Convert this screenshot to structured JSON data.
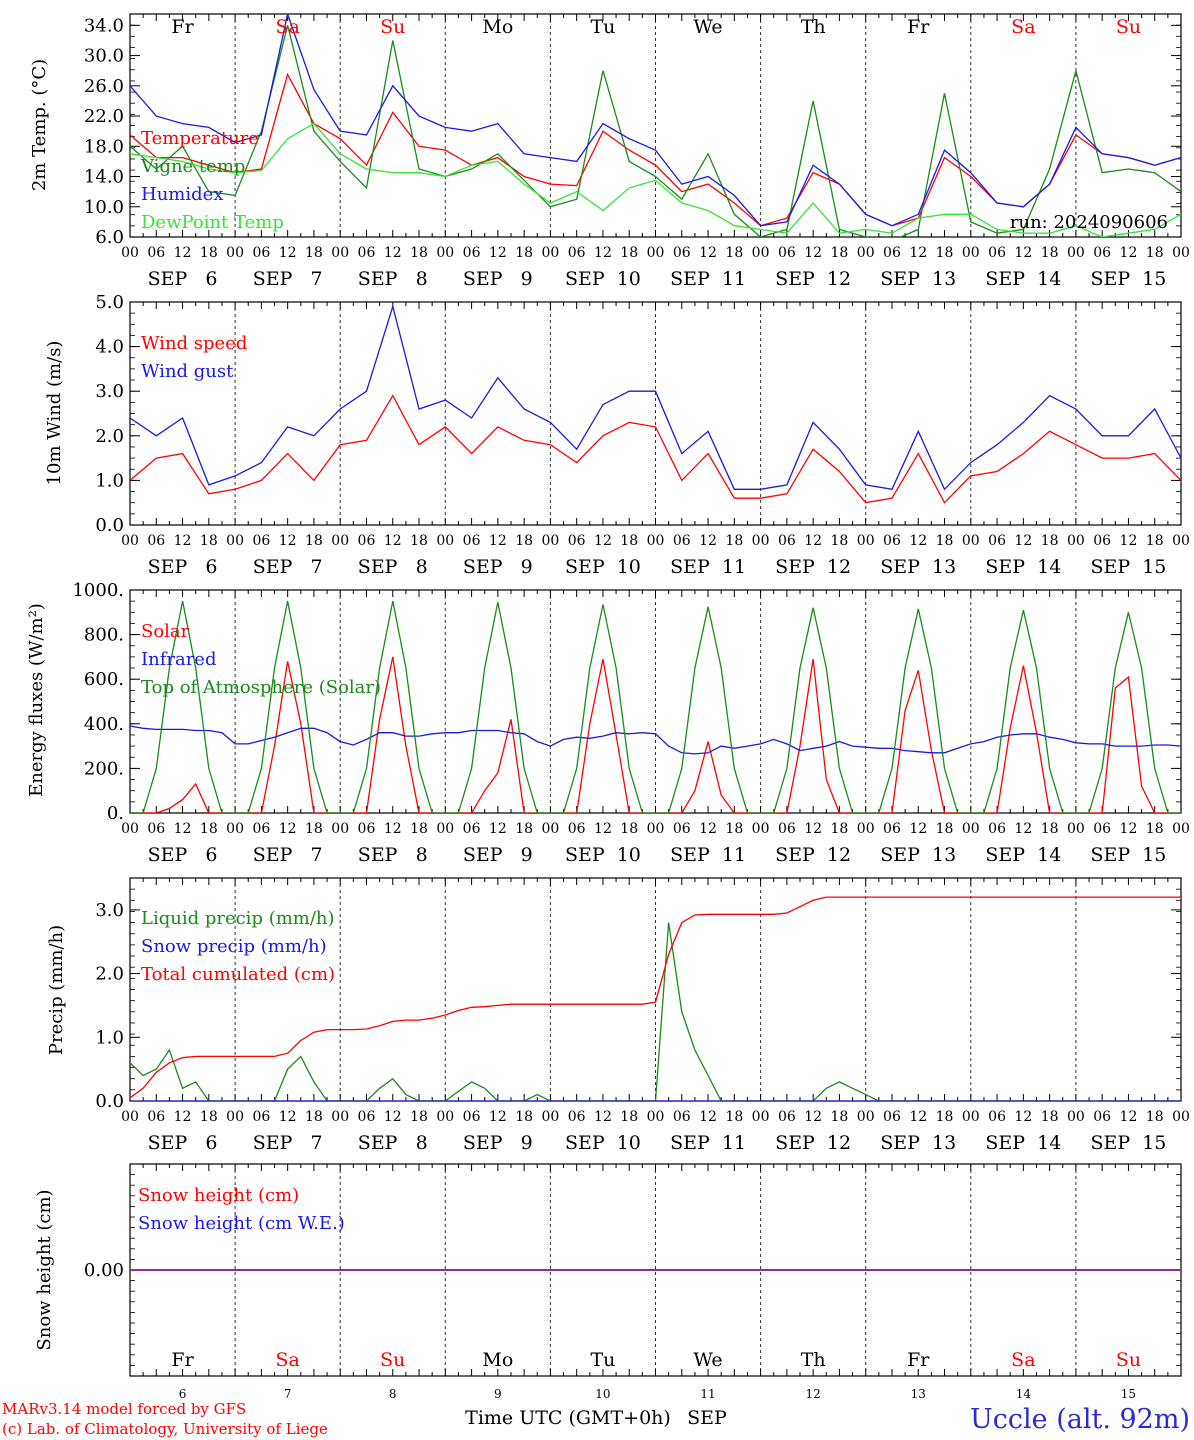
{
  "colors": {
    "red": "#ff0000",
    "green": "#1b8a1b",
    "blue": "#1a1ae6",
    "lightgreen": "#33e633",
    "weekend": "#ff0000",
    "weekday": "#000000",
    "station": "#2a2ad8"
  },
  "days": [
    {
      "abbr": "Fr",
      "date": "SEP   6",
      "num": "6",
      "weekend": false
    },
    {
      "abbr": "Sa",
      "date": "SEP   7",
      "num": "7",
      "weekend": true
    },
    {
      "abbr": "Su",
      "date": "SEP   8",
      "num": "8",
      "weekend": true
    },
    {
      "abbr": "Mo",
      "date": "SEP   9",
      "num": "9",
      "weekend": false
    },
    {
      "abbr": "Tu",
      "date": "SEP  10",
      "num": "10",
      "weekend": false
    },
    {
      "abbr": "We",
      "date": "SEP  11",
      "num": "11",
      "weekend": false
    },
    {
      "abbr": "Th",
      "date": "SEP  12",
      "num": "12",
      "weekend": false
    },
    {
      "abbr": "Fr",
      "date": "SEP  13",
      "num": "13",
      "weekend": false
    },
    {
      "abbr": "Sa",
      "date": "SEP  14",
      "num": "14",
      "weekend": true
    },
    {
      "abbr": "Su",
      "date": "SEP  15",
      "num": "15",
      "weekend": true
    }
  ],
  "hour_labels": [
    "00",
    "06",
    "12",
    "18"
  ],
  "final_hour_label": "00",
  "footer": {
    "model": "MARv3.14 model forced by GFS",
    "credit": "(c) Lab. of Climatology, University of Liege",
    "xlabel": "Time UTC (GMT+0h)",
    "month": "SEP",
    "station": "Uccle (alt. 92m)"
  },
  "chart_data": [
    {
      "type": "line",
      "ylabel": "2m Temp. (°C)",
      "ylim": [
        6.0,
        35.5
      ],
      "yticks": [
        "34.0",
        "30.0",
        "26.0",
        "22.0",
        "18.0",
        "14.0",
        "10.0",
        "6.0"
      ],
      "run_label": "run: 2024090606",
      "x_hours": [
        0,
        6,
        12,
        18,
        24,
        30,
        36,
        42,
        48,
        54,
        60,
        66,
        72,
        78,
        84,
        90,
        96,
        102,
        108,
        114,
        120,
        126,
        132,
        138,
        144,
        150,
        156,
        162,
        168,
        174,
        180,
        186,
        192,
        198,
        204,
        210,
        216,
        222,
        228,
        234,
        240
      ],
      "series": [
        {
          "name": "Temperature",
          "color": "red",
          "values": [
            19.5,
            16.5,
            16.5,
            15.5,
            14.5,
            15.0,
            27.5,
            21.0,
            19.0,
            15.5,
            22.5,
            18.0,
            17.5,
            15.5,
            16.5,
            14.0,
            13.0,
            12.8,
            20.0,
            17.5,
            15.5,
            12.0,
            13.0,
            10.5,
            7.5,
            8.5,
            14.5,
            13.0,
            9.0,
            7.5,
            8.5,
            16.5,
            14.0,
            10.5,
            10.0,
            13.0,
            19.5,
            17.0,
            16.5,
            15.5,
            16.5
          ]
        },
        {
          "name": "Vigne temp",
          "color": "green",
          "values": [
            18.0,
            15.0,
            18.0,
            12.0,
            11.5,
            20.0,
            34.0,
            20.0,
            16.0,
            12.5,
            32.0,
            15.0,
            14.0,
            15.0,
            17.0,
            13.5,
            10.0,
            11.0,
            28.0,
            16.0,
            14.0,
            11.0,
            17.0,
            9.0,
            6.0,
            7.0,
            24.0,
            7.0,
            6.0,
            5.5,
            7.0,
            25.0,
            8.0,
            6.5,
            7.0,
            15.0,
            28.0,
            14.5,
            15.0,
            14.5,
            12.0
          ]
        },
        {
          "name": "Humidex",
          "color": "blue",
          "values": [
            26.0,
            22.0,
            21.0,
            20.5,
            18.5,
            19.5,
            35.5,
            25.5,
            20.0,
            19.5,
            26.0,
            22.0,
            20.5,
            20.0,
            21.0,
            17.0,
            16.5,
            16.0,
            21.0,
            19.0,
            17.5,
            13.0,
            14.0,
            11.5,
            7.5,
            8.0,
            15.5,
            13.0,
            9.0,
            7.5,
            9.0,
            17.5,
            14.5,
            10.5,
            10.0,
            13.0,
            20.5,
            17.0,
            16.5,
            15.5,
            16.5
          ]
        },
        {
          "name": "DewPoint Temp",
          "color": "lightgreen",
          "values": [
            17.0,
            16.5,
            16.0,
            15.0,
            14.5,
            14.8,
            19.0,
            21.0,
            17.0,
            15.0,
            14.5,
            14.5,
            14.0,
            15.5,
            16.0,
            13.0,
            10.5,
            12.0,
            9.5,
            12.5,
            13.5,
            10.5,
            9.5,
            7.5,
            7.0,
            6.5,
            10.5,
            6.5,
            7.0,
            6.5,
            8.5,
            9.0,
            9.0,
            7.0,
            6.5,
            6.5,
            7.5,
            6.0,
            6.5,
            7.0,
            9.0
          ]
        }
      ]
    },
    {
      "type": "line",
      "ylabel": "10m Wind (m/s)",
      "ylim": [
        0.0,
        5.0
      ],
      "yticks": [
        "5.0",
        "4.0",
        "3.0",
        "2.0",
        "1.0",
        "0.0"
      ],
      "x_hours": [
        0,
        6,
        12,
        18,
        24,
        30,
        36,
        42,
        48,
        54,
        60,
        66,
        72,
        78,
        84,
        90,
        96,
        102,
        108,
        114,
        120,
        126,
        132,
        138,
        144,
        150,
        156,
        162,
        168,
        174,
        180,
        186,
        192,
        198,
        204,
        210,
        216,
        222,
        228,
        234,
        240
      ],
      "series": [
        {
          "name": "Wind speed",
          "color": "red",
          "values": [
            1.0,
            1.5,
            1.6,
            0.7,
            0.8,
            1.0,
            1.6,
            1.0,
            1.8,
            1.9,
            2.9,
            1.8,
            2.2,
            1.6,
            2.2,
            1.9,
            1.8,
            1.4,
            2.0,
            2.3,
            2.2,
            1.0,
            1.6,
            0.6,
            0.6,
            0.7,
            1.7,
            1.2,
            0.5,
            0.6,
            1.6,
            0.5,
            1.1,
            1.2,
            1.6,
            2.1,
            1.8,
            1.5,
            1.5,
            1.6,
            1.0
          ]
        },
        {
          "name": "Wind gust",
          "color": "blue",
          "values": [
            2.4,
            2.0,
            2.4,
            0.9,
            1.1,
            1.4,
            2.2,
            2.0,
            2.6,
            3.0,
            4.9,
            2.6,
            2.8,
            2.4,
            3.3,
            2.6,
            2.3,
            1.7,
            2.7,
            3.0,
            3.0,
            1.6,
            2.1,
            0.8,
            0.8,
            0.9,
            2.3,
            1.7,
            0.9,
            0.8,
            2.1,
            0.8,
            1.4,
            1.8,
            2.3,
            2.9,
            2.6,
            2.0,
            2.0,
            2.6,
            1.5
          ]
        }
      ]
    },
    {
      "type": "line",
      "ylabel": "Energy fluxes (W/m²)",
      "ylim": [
        0,
        1000
      ],
      "yticks": [
        "1000.",
        "800.",
        "600.",
        "400.",
        "200.",
        "0."
      ],
      "x_hours": [
        0,
        3,
        6,
        9,
        12,
        15,
        18,
        21,
        24,
        27,
        30,
        33,
        36,
        39,
        42,
        45,
        48,
        51,
        54,
        57,
        60,
        63,
        66,
        69,
        72,
        75,
        78,
        81,
        84,
        87,
        90,
        93,
        96,
        99,
        102,
        105,
        108,
        111,
        114,
        117,
        120,
        123,
        126,
        129,
        132,
        135,
        138,
        141,
        144,
        147,
        150,
        153,
        156,
        159,
        162,
        165,
        168,
        171,
        174,
        177,
        180,
        183,
        186,
        189,
        192,
        195,
        198,
        201,
        204,
        207,
        210,
        213,
        216,
        219,
        222,
        225,
        228,
        231,
        234,
        237,
        240
      ],
      "series": [
        {
          "name": "Solar",
          "color": "red",
          "values": [
            0,
            0,
            0,
            20,
            60,
            130,
            0,
            0,
            0,
            0,
            0,
            300,
            680,
            400,
            0,
            0,
            0,
            0,
            0,
            420,
            700,
            300,
            0,
            0,
            0,
            0,
            0,
            100,
            180,
            420,
            0,
            0,
            0,
            0,
            0,
            400,
            690,
            350,
            0,
            0,
            0,
            0,
            0,
            100,
            320,
            80,
            0,
            0,
            0,
            0,
            0,
            300,
            690,
            150,
            0,
            0,
            0,
            0,
            0,
            460,
            640,
            280,
            0,
            0,
            0,
            0,
            0,
            380,
            660,
            360,
            0,
            0,
            0,
            0,
            0,
            560,
            610,
            120,
            0,
            0,
            0
          ]
        },
        {
          "name": "Infrared",
          "color": "blue",
          "values": [
            390,
            380,
            375,
            375,
            375,
            370,
            370,
            360,
            310,
            310,
            325,
            340,
            360,
            380,
            380,
            360,
            320,
            305,
            330,
            360,
            360,
            345,
            345,
            355,
            360,
            360,
            370,
            370,
            370,
            360,
            355,
            320,
            300,
            330,
            340,
            335,
            345,
            360,
            355,
            360,
            355,
            300,
            270,
            265,
            270,
            300,
            290,
            300,
            310,
            330,
            310,
            280,
            290,
            300,
            320,
            300,
            295,
            290,
            290,
            280,
            275,
            270,
            270,
            290,
            310,
            320,
            340,
            350,
            355,
            355,
            340,
            330,
            315,
            310,
            310,
            300,
            300,
            300,
            305,
            305,
            300
          ]
        },
        {
          "name": "Top of Atmosphere (Solar)",
          "color": "green",
          "values": [
            0,
            0,
            200,
            650,
            950,
            650,
            200,
            0,
            0,
            0,
            200,
            650,
            950,
            650,
            200,
            0,
            0,
            0,
            200,
            650,
            950,
            650,
            200,
            0,
            0,
            0,
            200,
            650,
            945,
            650,
            200,
            0,
            0,
            0,
            200,
            650,
            935,
            650,
            200,
            0,
            0,
            0,
            200,
            650,
            925,
            650,
            200,
            0,
            0,
            0,
            200,
            650,
            920,
            650,
            200,
            0,
            0,
            0,
            200,
            650,
            915,
            650,
            200,
            0,
            0,
            0,
            200,
            650,
            910,
            650,
            200,
            0,
            0,
            0,
            200,
            650,
            900,
            650,
            200,
            0,
            0
          ]
        }
      ]
    },
    {
      "type": "line",
      "ylabel": "Precip (mm/h)",
      "ylim": [
        0.0,
        3.5
      ],
      "yticks": [
        "3.0",
        "2.0",
        "1.0",
        "0.0"
      ],
      "x_hours": [
        0,
        3,
        6,
        9,
        12,
        15,
        18,
        21,
        24,
        27,
        30,
        33,
        36,
        39,
        42,
        45,
        48,
        51,
        54,
        57,
        60,
        63,
        66,
        69,
        72,
        75,
        78,
        81,
        84,
        87,
        90,
        93,
        96,
        99,
        102,
        105,
        108,
        111,
        114,
        117,
        120,
        123,
        126,
        129,
        132,
        135,
        138,
        141,
        144,
        147,
        150,
        153,
        156,
        159,
        162,
        165,
        168,
        171,
        174,
        177,
        180,
        183,
        186,
        189,
        192,
        195,
        198,
        201,
        204,
        207,
        210,
        213,
        216,
        219,
        222,
        225,
        228,
        231,
        234,
        237,
        240
      ],
      "series": [
        {
          "name": "Liquid precip (mm/h)",
          "color": "green",
          "values": [
            0.6,
            0.4,
            0.5,
            0.8,
            0.2,
            0.3,
            0,
            0,
            0,
            0,
            0,
            0,
            0.5,
            0.7,
            0.3,
            0,
            0,
            0,
            0,
            0.2,
            0.35,
            0.1,
            0,
            0,
            0,
            0.15,
            0.3,
            0.2,
            0,
            0,
            0,
            0.1,
            0,
            0,
            0,
            0,
            0,
            0,
            0,
            0,
            0,
            2.8,
            1.4,
            0.8,
            0.4,
            0,
            0,
            0,
            0,
            0,
            0,
            0,
            0,
            0.2,
            0.3,
            0.2,
            0.1,
            0,
            0,
            0,
            0,
            0,
            0,
            0,
            0,
            0,
            0,
            0,
            0,
            0,
            0,
            0,
            0,
            0,
            0,
            0,
            0,
            0,
            0,
            0,
            0
          ]
        },
        {
          "name": "Snow precip (mm/h)",
          "color": "blue",
          "values": [
            0,
            0,
            0,
            0,
            0,
            0,
            0,
            0,
            0,
            0,
            0,
            0,
            0,
            0,
            0,
            0,
            0,
            0,
            0,
            0,
            0,
            0,
            0,
            0,
            0,
            0,
            0,
            0,
            0,
            0,
            0,
            0,
            0,
            0,
            0,
            0,
            0,
            0,
            0,
            0,
            0,
            0,
            0,
            0,
            0,
            0,
            0,
            0,
            0,
            0,
            0,
            0,
            0,
            0,
            0,
            0,
            0,
            0,
            0,
            0,
            0,
            0,
            0,
            0,
            0,
            0,
            0,
            0,
            0,
            0,
            0,
            0,
            0,
            0,
            0,
            0,
            0,
            0,
            0,
            0,
            0
          ]
        },
        {
          "name": "Total cumulated (cm)",
          "color": "red",
          "values": [
            0.05,
            0.2,
            0.45,
            0.6,
            0.68,
            0.7,
            0.7,
            0.7,
            0.7,
            0.7,
            0.7,
            0.7,
            0.75,
            0.95,
            1.08,
            1.12,
            1.12,
            1.12,
            1.13,
            1.18,
            1.25,
            1.27,
            1.27,
            1.3,
            1.35,
            1.42,
            1.47,
            1.48,
            1.5,
            1.52,
            1.52,
            1.52,
            1.52,
            1.52,
            1.52,
            1.52,
            1.52,
            1.52,
            1.52,
            1.52,
            1.55,
            2.3,
            2.8,
            2.92,
            2.93,
            2.93,
            2.93,
            2.93,
            2.93,
            2.93,
            2.95,
            3.05,
            3.15,
            3.2,
            3.2,
            3.2,
            3.2,
            3.2,
            3.2,
            3.2,
            3.2,
            3.2,
            3.2,
            3.2,
            3.2,
            3.2,
            3.2,
            3.2,
            3.2,
            3.2,
            3.2,
            3.2,
            3.2,
            3.2,
            3.2,
            3.2,
            3.2,
            3.2,
            3.2,
            3.2,
            3.2
          ]
        }
      ]
    },
    {
      "type": "line",
      "ylabel": "Snow height (cm)",
      "ylim": [
        -1,
        1
      ],
      "yticks": [
        "0.00"
      ],
      "x_hours": [
        0,
        240
      ],
      "series": [
        {
          "name": "Snow height (cm)",
          "color": "red",
          "values": [
            0,
            0
          ]
        },
        {
          "name": "Snow height (cm W.E.)",
          "color": "blue",
          "values": [
            0,
            0
          ]
        }
      ]
    }
  ]
}
